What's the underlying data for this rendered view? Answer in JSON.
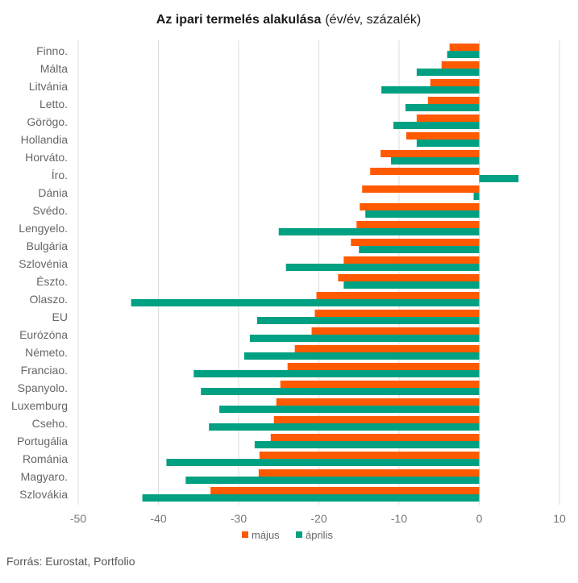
{
  "chart_data": {
    "type": "bar",
    "orientation": "horizontal",
    "title": "Az ipari termelés alakulása",
    "subtitle": "(év/év, százalék)",
    "categories": [
      "Finno.",
      "Málta",
      "Litvánia",
      "Letto.",
      "Görögo.",
      "Hollandia",
      "Horváto.",
      "Íro.",
      "Dánia",
      "Svédo.",
      "Lengyelo.",
      "Bulgária",
      "Szlovénia",
      "Észto.",
      "Olaszo.",
      "EU",
      "Eurózóna",
      "Németo.",
      "Franciao.",
      "Spanyolo.",
      "Luxemburg",
      "Cseho.",
      "Portugália",
      "Románia",
      "Magyaro.",
      "Szlovákia"
    ],
    "series": [
      {
        "name": "május",
        "color": "#ff5a00",
        "values": [
          -3.7,
          -4.7,
          -6.1,
          -6.4,
          -7.8,
          -9.1,
          -12.3,
          -13.6,
          -14.6,
          -14.9,
          -15.3,
          -16.0,
          -16.9,
          -17.6,
          -20.3,
          -20.5,
          -20.9,
          -23.0,
          -23.9,
          -24.8,
          -25.3,
          -25.6,
          -26.0,
          -27.4,
          -27.5,
          -33.5
        ]
      },
      {
        "name": "április",
        "color": "#00a082",
        "values": [
          -4.0,
          -7.8,
          -12.2,
          -9.2,
          -10.7,
          -7.8,
          -11.0,
          4.9,
          -0.7,
          -14.2,
          -25.0,
          -15.0,
          -24.1,
          -16.9,
          -43.4,
          -27.7,
          -28.6,
          -29.3,
          -35.6,
          -34.7,
          -32.4,
          -33.7,
          -28.0,
          -39.0,
          -36.6,
          -42.0
        ]
      }
    ],
    "xlim": [
      -50,
      10
    ],
    "xticks": [
      -50,
      -40,
      -30,
      -20,
      -10,
      0,
      10
    ],
    "grid": true,
    "legend_position": "bottom"
  },
  "source_text": "Forrás: Eurostat, Portfolio"
}
